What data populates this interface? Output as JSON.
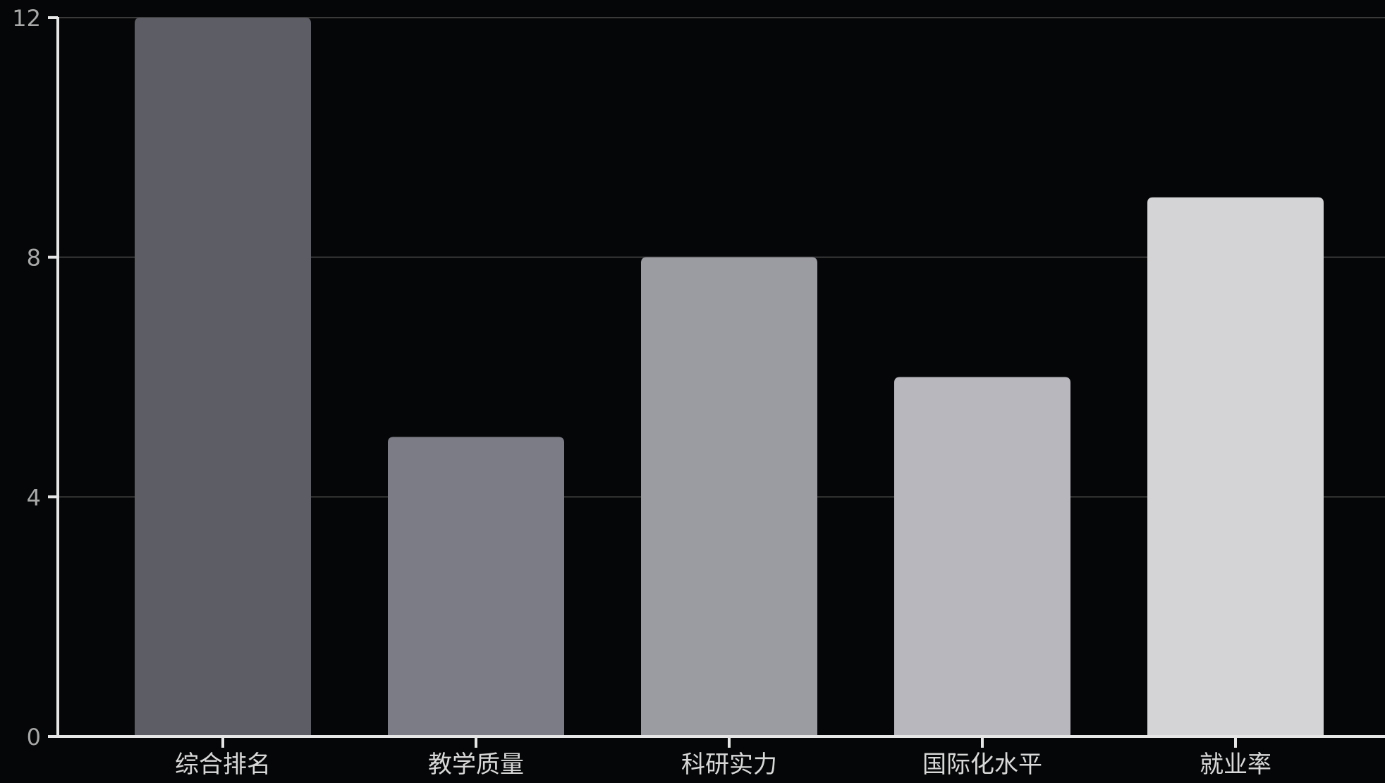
{
  "chart_data": {
    "type": "bar",
    "title": "",
    "xlabel": "",
    "ylabel": "",
    "categories": [
      "综合排名",
      "教学质量",
      "科研实力",
      "国际化水平",
      "就业率"
    ],
    "values": [
      12,
      5,
      8,
      6,
      9
    ],
    "ylim": [
      0,
      12
    ],
    "yticks": [
      0,
      4,
      8,
      12
    ],
    "ytick_labels": [
      "0",
      "4",
      "8",
      "12"
    ],
    "grid": true,
    "legend": "none",
    "colors": {
      "background": "#050607",
      "bars": [
        "#5d5d66",
        "#7c7c86",
        "#9b9ca1",
        "#b8b7bd",
        "#d4d4d6"
      ],
      "axis": "#e6e6e6",
      "grid": "#3a3a3a",
      "tick_label": "#a8a8a8",
      "category_label": "#d8d8d8"
    }
  }
}
